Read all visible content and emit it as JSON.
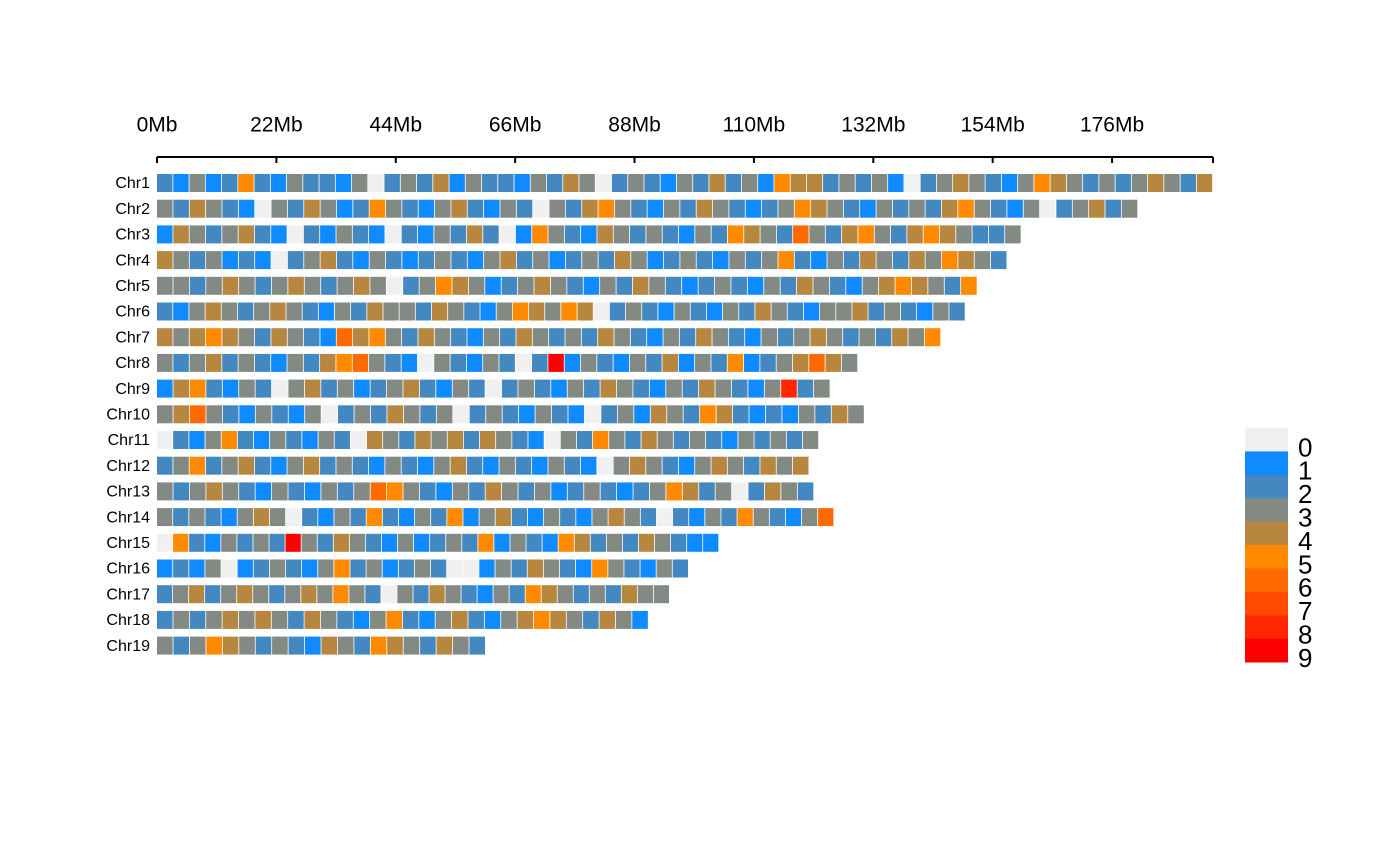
{
  "chart_data": {
    "type": "chromosome-density",
    "xlim": [
      0,
      194.6
    ],
    "xticks": [
      {
        "value": 0,
        "label": "0Mb"
      },
      {
        "value": 22,
        "label": "22Mb"
      },
      {
        "value": 44,
        "label": "44Mb"
      },
      {
        "value": 66,
        "label": "66Mb"
      },
      {
        "value": 88,
        "label": "88Mb"
      },
      {
        "value": 110,
        "label": "110Mb"
      },
      {
        "value": 132,
        "label": "132Mb"
      },
      {
        "value": 154,
        "label": "154Mb"
      },
      {
        "value": 176,
        "label": "176Mb"
      }
    ],
    "chromosomes": [
      {
        "name": "Chr1",
        "length": 194.6,
        "values": [
          2,
          1,
          3,
          1,
          2,
          5,
          2,
          1,
          3,
          2,
          2,
          1,
          3,
          0,
          2,
          3,
          2,
          4,
          1,
          3,
          2,
          2,
          1,
          3,
          2,
          4,
          3,
          0,
          2,
          3,
          2,
          1,
          3,
          2,
          4,
          2,
          3,
          1,
          5,
          4,
          4,
          2,
          3,
          2,
          3,
          1,
          0,
          2,
          3,
          4,
          3,
          2,
          1,
          3,
          5,
          4,
          3,
          2,
          3,
          2,
          3,
          4,
          3,
          2,
          4
        ]
      },
      {
        "name": "Chr2",
        "length": 180.8,
        "values": [
          3,
          2,
          4,
          3,
          2,
          1,
          0,
          3,
          2,
          4,
          3,
          1,
          2,
          5,
          3,
          2,
          1,
          3,
          4,
          2,
          1,
          3,
          2,
          0,
          3,
          2,
          4,
          5,
          3,
          2,
          1,
          3,
          2,
          4,
          3,
          2,
          1,
          2,
          3,
          5,
          4,
          3,
          2,
          1,
          3,
          2,
          3,
          2,
          4,
          5,
          3,
          2,
          1,
          3,
          0,
          2,
          3,
          4,
          2,
          3
        ]
      },
      {
        "name": "Chr3",
        "length": 159.3,
        "values": [
          1,
          4,
          3,
          2,
          3,
          4,
          2,
          1,
          0,
          2,
          1,
          3,
          2,
          1,
          0,
          2,
          1,
          3,
          2,
          4,
          2,
          0,
          1,
          5,
          3,
          2,
          1,
          4,
          3,
          2,
          3,
          2,
          1,
          3,
          2,
          5,
          4,
          3,
          2,
          6,
          3,
          2,
          4,
          5,
          3,
          2,
          4,
          5,
          4,
          3,
          2,
          2,
          3
        ]
      },
      {
        "name": "Chr4",
        "length": 156.7,
        "values": [
          4,
          3,
          2,
          3,
          1,
          2,
          1,
          0,
          2,
          3,
          4,
          2,
          1,
          3,
          2,
          1,
          2,
          3,
          2,
          1,
          3,
          4,
          2,
          3,
          1,
          2,
          3,
          2,
          4,
          3,
          1,
          2,
          3,
          2,
          1,
          3,
          2,
          3,
          5,
          2,
          1,
          3,
          2,
          4,
          3,
          2,
          4,
          3,
          5,
          4,
          3,
          2
        ]
      },
      {
        "name": "Chr5",
        "length": 151.2,
        "values": [
          3,
          3,
          2,
          3,
          4,
          3,
          2,
          3,
          4,
          3,
          2,
          3,
          4,
          3,
          0,
          2,
          3,
          5,
          4,
          3,
          1,
          2,
          3,
          4,
          3,
          2,
          1,
          3,
          2,
          4,
          3,
          2,
          1,
          2,
          3,
          2,
          1,
          3,
          2,
          4,
          3,
          2,
          1,
          3,
          4,
          5,
          4,
          3,
          2,
          5
        ]
      },
      {
        "name": "Chr6",
        "length": 149.0,
        "values": [
          2,
          1,
          3,
          4,
          3,
          2,
          3,
          4,
          3,
          2,
          1,
          3,
          2,
          4,
          3,
          3,
          2,
          4,
          3,
          2,
          1,
          3,
          5,
          4,
          3,
          5,
          4,
          0,
          2,
          3,
          2,
          1,
          3,
          2,
          1,
          3,
          2,
          4,
          3,
          2,
          1,
          3,
          3,
          4,
          2,
          3,
          2,
          1,
          3,
          2
        ]
      },
      {
        "name": "Chr7",
        "length": 144.5,
        "values": [
          4,
          3,
          4,
          5,
          4,
          3,
          2,
          4,
          3,
          2,
          1,
          6,
          4,
          5,
          3,
          2,
          4,
          3,
          2,
          1,
          3,
          2,
          4,
          3,
          2,
          3,
          2,
          4,
          3,
          2,
          1,
          3,
          2,
          4,
          3,
          2,
          1,
          3,
          2,
          3,
          4,
          3,
          2,
          3,
          2,
          4,
          3,
          5
        ]
      },
      {
        "name": "Chr8",
        "length": 129.2,
        "values": [
          3,
          2,
          3,
          4,
          2,
          3,
          2,
          1,
          3,
          2,
          4,
          5,
          6,
          3,
          2,
          1,
          0,
          3,
          2,
          1,
          3,
          2,
          0,
          2,
          9,
          1,
          3,
          2,
          1,
          3,
          2,
          4,
          1,
          3,
          2,
          5,
          1,
          2,
          3,
          4,
          6,
          4,
          3
        ]
      },
      {
        "name": "Chr9",
        "length": 124.1,
        "values": [
          1,
          4,
          5,
          2,
          1,
          3,
          2,
          0,
          3,
          4,
          2,
          3,
          1,
          2,
          3,
          4,
          2,
          1,
          3,
          2,
          0,
          2,
          3,
          2,
          1,
          3,
          2,
          4,
          3,
          2,
          1,
          3,
          2,
          4,
          3,
          2,
          1,
          3,
          8,
          2,
          3
        ]
      },
      {
        "name": "Chr10",
        "length": 130.4,
        "values": [
          3,
          4,
          6,
          3,
          2,
          1,
          3,
          2,
          1,
          3,
          0,
          2,
          3,
          2,
          4,
          3,
          2,
          3,
          0,
          2,
          3,
          2,
          1,
          3,
          2,
          1,
          0,
          2,
          3,
          1,
          4,
          3,
          2,
          5,
          4,
          2,
          1,
          2,
          1,
          3,
          2,
          4,
          3
        ]
      },
      {
        "name": "Chr11",
        "length": 122.0,
        "values": [
          0,
          2,
          1,
          3,
          5,
          2,
          1,
          3,
          2,
          1,
          3,
          2,
          0,
          4,
          3,
          2,
          4,
          3,
          4,
          2,
          4,
          3,
          2,
          1,
          0,
          3,
          2,
          5,
          3,
          2,
          4,
          3,
          2,
          3,
          2,
          1,
          3,
          2,
          3,
          2,
          3
        ]
      },
      {
        "name": "Chr12",
        "length": 120.2,
        "values": [
          2,
          3,
          5,
          2,
          3,
          4,
          2,
          1,
          3,
          4,
          2,
          3,
          2,
          1,
          3,
          2,
          1,
          3,
          4,
          2,
          1,
          3,
          2,
          1,
          3,
          2,
          1,
          0,
          3,
          4,
          3,
          2,
          1,
          3,
          4,
          3,
          2,
          4,
          3,
          4
        ]
      },
      {
        "name": "Chr13",
        "length": 121.1,
        "values": [
          3,
          2,
          3,
          4,
          3,
          2,
          1,
          3,
          2,
          1,
          3,
          2,
          3,
          6,
          5,
          3,
          2,
          1,
          3,
          2,
          4,
          3,
          2,
          3,
          1,
          2,
          3,
          2,
          1,
          2,
          3,
          5,
          4,
          2,
          3,
          0,
          2,
          4,
          3,
          2
        ]
      },
      {
        "name": "Chr14",
        "length": 124.8,
        "values": [
          3,
          2,
          3,
          2,
          1,
          3,
          4,
          3,
          0,
          2,
          1,
          3,
          2,
          5,
          2,
          1,
          3,
          2,
          5,
          1,
          3,
          4,
          2,
          1,
          3,
          2,
          1,
          3,
          4,
          3,
          2,
          0,
          2,
          1,
          3,
          2,
          5,
          3,
          2,
          1,
          3,
          6
        ]
      },
      {
        "name": "Chr15",
        "length": 103.6,
        "values": [
          0,
          5,
          2,
          1,
          3,
          2,
          3,
          2,
          9,
          3,
          2,
          4,
          3,
          2,
          1,
          3,
          1,
          2,
          3,
          2,
          5,
          1,
          3,
          2,
          1,
          5,
          4,
          2,
          3,
          2,
          4,
          3,
          2,
          1,
          1
        ]
      },
      {
        "name": "Chr16",
        "length": 98.0,
        "values": [
          1,
          2,
          1,
          3,
          0,
          1,
          2,
          3,
          2,
          1,
          3,
          5,
          2,
          3,
          1,
          2,
          3,
          2,
          0,
          0,
          1,
          3,
          2,
          4,
          3,
          2,
          1,
          5,
          3,
          2,
          1,
          3,
          2
        ]
      },
      {
        "name": "Chr17",
        "length": 94.5,
        "values": [
          2,
          3,
          4,
          2,
          3,
          4,
          3,
          2,
          3,
          4,
          3,
          5,
          3,
          2,
          0,
          3,
          2,
          4,
          3,
          2,
          1,
          3,
          2,
          5,
          4,
          3,
          2,
          3,
          2,
          4,
          3,
          3
        ]
      },
      {
        "name": "Chr18",
        "length": 90.6,
        "values": [
          2,
          3,
          2,
          3,
          4,
          3,
          4,
          3,
          2,
          4,
          3,
          2,
          1,
          3,
          5,
          2,
          1,
          3,
          4,
          2,
          1,
          3,
          4,
          5,
          4,
          3,
          2,
          4,
          3,
          1
        ]
      },
      {
        "name": "Chr19",
        "length": 60.6,
        "values": [
          3,
          2,
          3,
          5,
          4,
          3,
          2,
          3,
          2,
          1,
          4,
          3,
          2,
          5,
          4,
          3,
          2,
          4,
          3,
          2
        ]
      }
    ],
    "legend": {
      "levels": [
        0,
        1,
        2,
        3,
        4,
        5,
        6,
        7,
        8,
        9
      ],
      "colors": [
        "#f0f0f0",
        "#0f8bff",
        "#4388c0",
        "#838a84",
        "#b8873f",
        "#ff8a00",
        "#ff6a00",
        "#ff4a00",
        "#ff2600",
        "#ff0000"
      ]
    }
  }
}
